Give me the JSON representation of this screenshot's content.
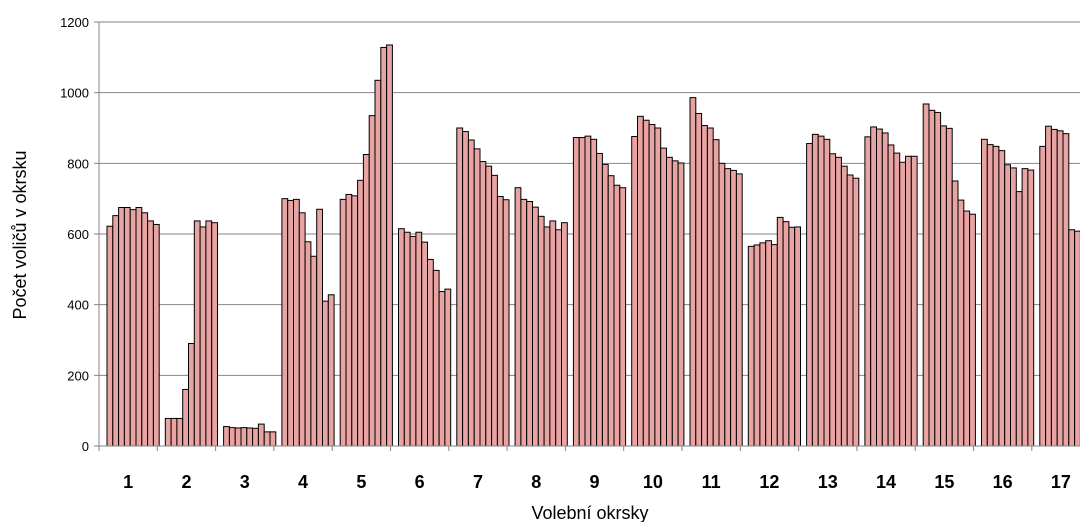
{
  "chart_data": {
    "type": "bar",
    "title": "",
    "xlabel": "Volební okrsky",
    "ylabel": "Počet voličů v okrsku",
    "ylim": [
      0,
      1200
    ],
    "yticks": [
      0,
      200,
      400,
      600,
      800,
      1000,
      1200
    ],
    "grid": true,
    "bar_color": "#E8A3A3",
    "bar_edge_color": "#000000",
    "groups": [
      {
        "label": "1",
        "values": [
          622,
          652,
          675,
          675,
          669,
          675,
          660,
          637,
          627
        ]
      },
      {
        "label": "2",
        "values": [
          78,
          78,
          78,
          160,
          290,
          637,
          620,
          637,
          632
        ]
      },
      {
        "label": "3",
        "values": [
          55,
          52,
          51,
          52,
          51,
          50,
          62,
          40,
          40
        ]
      },
      {
        "label": "4",
        "values": [
          700,
          695,
          698,
          660,
          578,
          537,
          670,
          410,
          428
        ]
      },
      {
        "label": "5",
        "values": [
          698,
          712,
          708,
          752,
          825,
          935,
          1035,
          1128,
          1135
        ]
      },
      {
        "label": "6",
        "values": [
          615,
          605,
          593,
          605,
          577,
          528,
          497,
          437,
          444
        ]
      },
      {
        "label": "7",
        "values": [
          900,
          890,
          866,
          841,
          805,
          792,
          766,
          706,
          697
        ]
      },
      {
        "label": "8",
        "values": [
          731,
          698,
          692,
          676,
          650,
          620,
          637,
          612,
          632
        ]
      },
      {
        "label": "9",
        "values": [
          873,
          873,
          877,
          868,
          828,
          797,
          765,
          738,
          731
        ]
      },
      {
        "label": "10",
        "values": [
          876,
          933,
          922,
          910,
          900,
          843,
          817,
          807,
          801
        ]
      },
      {
        "label": "11",
        "values": [
          986,
          941,
          907,
          900,
          867,
          800,
          785,
          780,
          770
        ]
      },
      {
        "label": "12",
        "values": [
          565,
          569,
          575,
          581,
          570,
          647,
          635,
          619,
          620
        ]
      },
      {
        "label": "13",
        "values": [
          856,
          882,
          877,
          868,
          827,
          817,
          792,
          767,
          758
        ]
      },
      {
        "label": "14",
        "values": [
          875,
          903,
          897,
          886,
          852,
          829,
          803,
          820,
          820
        ]
      },
      {
        "label": "15",
        "values": [
          968,
          950,
          944,
          906,
          899,
          750,
          696,
          665,
          656
        ]
      },
      {
        "label": "16",
        "values": [
          868,
          853,
          848,
          836,
          796,
          787,
          720,
          785,
          781
        ]
      },
      {
        "label": "17",
        "values": [
          848,
          905,
          896,
          892,
          884,
          612,
          608
        ]
      }
    ]
  }
}
